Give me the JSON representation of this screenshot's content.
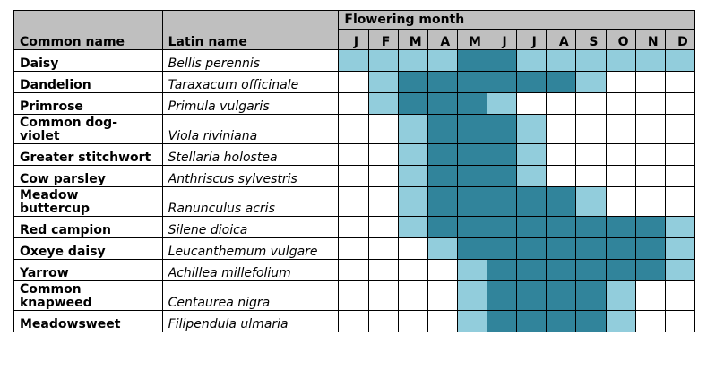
{
  "headers": {
    "common_name": "Common name",
    "latin_name": "Latin name",
    "flowering_month": "Flowering month"
  },
  "months": [
    "J",
    "F",
    "M",
    "A",
    "M",
    "J",
    "J",
    "A",
    "S",
    "O",
    "N",
    "D"
  ],
  "legend_colors": {
    "none": "#ffffff",
    "light": "#92cddc",
    "peak": "#31849b"
  },
  "rows": [
    {
      "common": [
        "Daisy"
      ],
      "latin": "Bellis perennis",
      "levels": [
        1,
        1,
        1,
        1,
        2,
        2,
        1,
        1,
        1,
        1,
        1,
        1
      ]
    },
    {
      "common": [
        "Dandelion"
      ],
      "latin": "Taraxacum officinale",
      "levels": [
        0,
        1,
        2,
        2,
        2,
        2,
        2,
        2,
        1,
        0,
        0,
        0
      ]
    },
    {
      "common": [
        "Primrose"
      ],
      "latin": "Primula vulgaris",
      "levels": [
        0,
        1,
        2,
        2,
        2,
        1,
        0,
        0,
        0,
        0,
        0,
        0
      ]
    },
    {
      "common": [
        "Common dog-",
        "violet"
      ],
      "latin": "Viola riviniana",
      "levels": [
        0,
        0,
        1,
        2,
        2,
        2,
        1,
        0,
        0,
        0,
        0,
        0
      ]
    },
    {
      "common": [
        "Greater stitchwort"
      ],
      "latin": "Stellaria holostea",
      "levels": [
        0,
        0,
        1,
        2,
        2,
        2,
        1,
        0,
        0,
        0,
        0,
        0
      ]
    },
    {
      "common": [
        "Cow parsley"
      ],
      "latin": "Anthriscus sylvestris",
      "levels": [
        0,
        0,
        1,
        2,
        2,
        2,
        1,
        0,
        0,
        0,
        0,
        0
      ]
    },
    {
      "common": [
        "Meadow",
        "buttercup"
      ],
      "latin": "Ranunculus acris",
      "levels": [
        0,
        0,
        1,
        2,
        2,
        2,
        2,
        2,
        1,
        0,
        0,
        0
      ]
    },
    {
      "common": [
        "Red campion"
      ],
      "latin": "Silene dioica",
      "levels": [
        0,
        0,
        1,
        2,
        2,
        2,
        2,
        2,
        2,
        2,
        2,
        1
      ]
    },
    {
      "common": [
        "Oxeye daisy"
      ],
      "latin": "Leucanthemum vulgare",
      "levels": [
        0,
        0,
        0,
        1,
        2,
        2,
        2,
        2,
        2,
        2,
        2,
        1
      ]
    },
    {
      "common": [
        "Yarrow"
      ],
      "latin": "Achillea millefolium",
      "levels": [
        0,
        0,
        0,
        0,
        1,
        2,
        2,
        2,
        2,
        2,
        2,
        1
      ]
    },
    {
      "common": [
        "Common",
        "knapweed"
      ],
      "latin": "Centaurea nigra",
      "levels": [
        0,
        0,
        0,
        0,
        1,
        2,
        2,
        2,
        2,
        1,
        0,
        0
      ]
    },
    {
      "common": [
        "Meadowsweet"
      ],
      "latin": "Filipendula ulmaria",
      "levels": [
        0,
        0,
        0,
        0,
        1,
        2,
        2,
        2,
        2,
        1,
        0,
        0
      ]
    }
  ]
}
